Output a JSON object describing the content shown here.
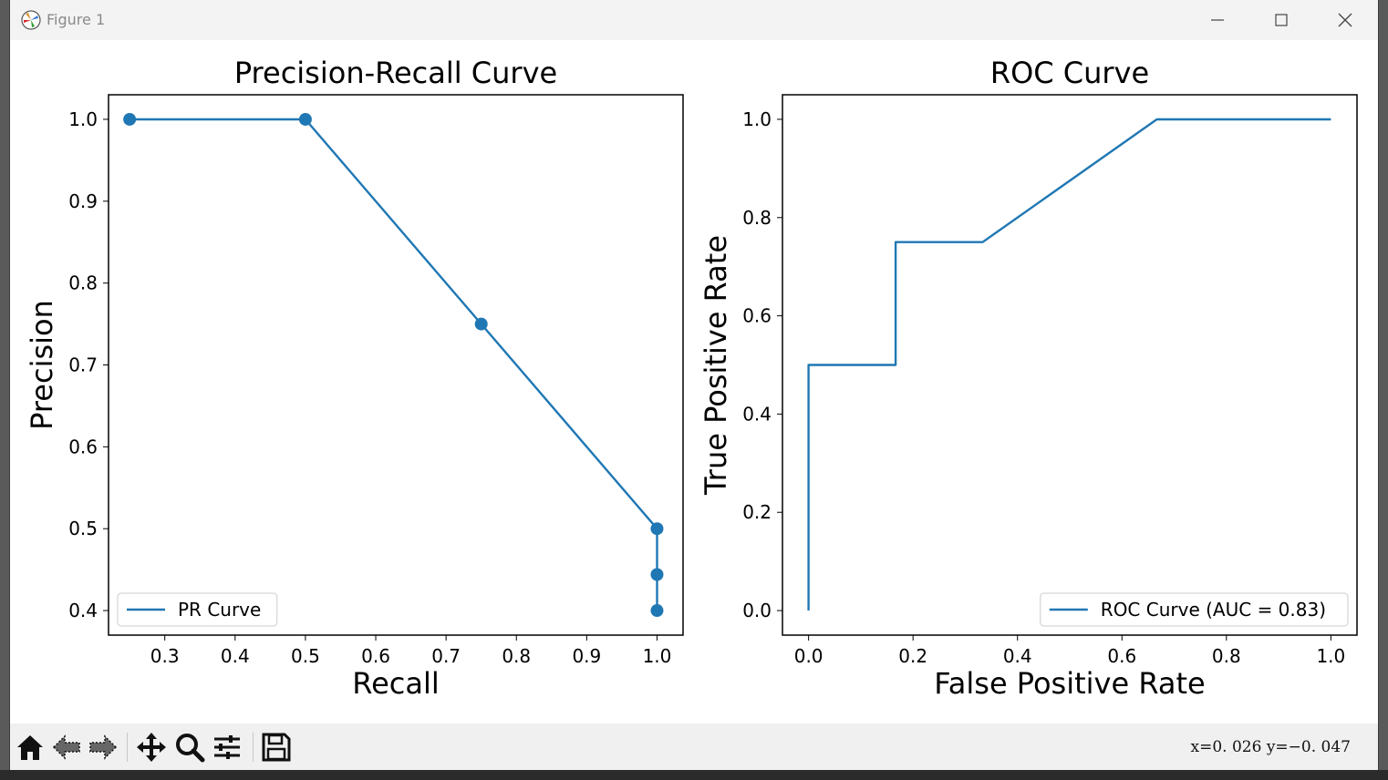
{
  "window": {
    "title": "Figure 1",
    "controls": [
      "minimize-icon",
      "maximize-icon",
      "close-icon"
    ]
  },
  "toolbar": {
    "buttons": [
      "home-icon",
      "back-icon",
      "forward-icon",
      "pan-icon",
      "zoom-icon",
      "configure-subplots-icon",
      "save-icon"
    ],
    "coords": "x=0. 026  y=−0. 047"
  },
  "colors": {
    "series": "#1f77b4",
    "axes": "#000000"
  },
  "chart_data": [
    {
      "type": "line",
      "title": "Precision-Recall Curve",
      "xlabel": "Recall",
      "ylabel": "Precision",
      "xlim": [
        0.22,
        1.037
      ],
      "ylim": [
        0.37,
        1.03
      ],
      "xticks": [
        "0.3",
        "0.4",
        "0.5",
        "0.6",
        "0.7",
        "0.8",
        "0.9",
        "1.0"
      ],
      "yticks": [
        "0.4",
        "0.5",
        "0.6",
        "0.7",
        "0.8",
        "0.9",
        "1.0"
      ],
      "markers": true,
      "legend": "lower left",
      "series": [
        {
          "name": "PR Curve",
          "x": [
            0.25,
            0.5,
            0.75,
            1.0,
            1.0,
            1.0
          ],
          "y": [
            1.0,
            1.0,
            0.75,
            0.5,
            0.444,
            0.4
          ]
        }
      ]
    },
    {
      "type": "line",
      "title": "ROC Curve",
      "xlabel": "False Positive Rate",
      "ylabel": "True Positive Rate",
      "xlim": [
        -0.05,
        1.05
      ],
      "ylim": [
        -0.05,
        1.05
      ],
      "xticks": [
        "0.0",
        "0.2",
        "0.4",
        "0.6",
        "0.8",
        "1.0"
      ],
      "yticks": [
        "0.0",
        "0.2",
        "0.4",
        "0.6",
        "0.8",
        "1.0"
      ],
      "markers": false,
      "legend": "lower right",
      "series": [
        {
          "name": "ROC Curve (AUC = 0.83)",
          "x": [
            0.0,
            0.0,
            0.1667,
            0.1667,
            0.3333,
            0.6667,
            1.0
          ],
          "y": [
            0.0,
            0.5,
            0.5,
            0.75,
            0.75,
            1.0,
            1.0
          ]
        }
      ]
    }
  ]
}
